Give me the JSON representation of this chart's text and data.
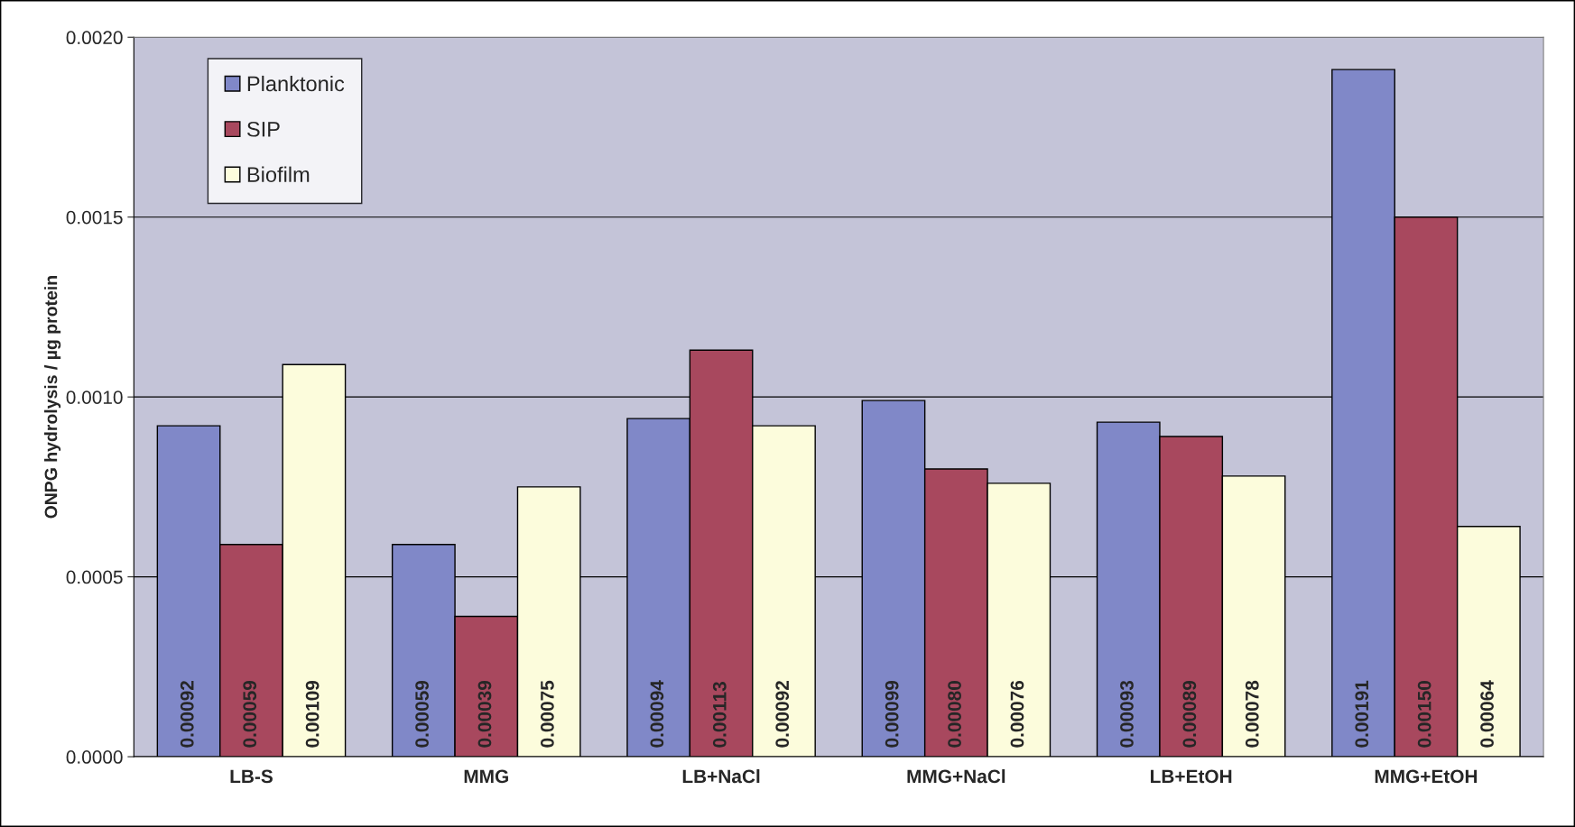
{
  "chart_data": {
    "type": "bar",
    "ylabel": "ONPG hydrolysis / µg protein",
    "categories": [
      "LB-S",
      "MMG",
      "LB+NaCl",
      "MMG+NaCl",
      "LB+EtOH",
      "MMG+EtOH"
    ],
    "series": [
      {
        "name": "Planktonic",
        "color": "#8088c8",
        "values": [
          0.00092,
          0.00059,
          0.00094,
          0.00099,
          0.00093,
          0.00191
        ],
        "value_labels": [
          "0.00092",
          "0.00059",
          "0.00094",
          "0.00099",
          "0.00093",
          "0.00191"
        ]
      },
      {
        "name": "SIP",
        "color": "#a8485e",
        "values": [
          0.00059,
          0.00039,
          0.00113,
          0.0008,
          0.00089,
          0.0015
        ],
        "value_labels": [
          "0.00059",
          "0.00039",
          "0.00113",
          "0.00080",
          "0.00089",
          "0.00150"
        ]
      },
      {
        "name": "Biofilm",
        "color": "#fcfcdc",
        "values": [
          0.00109,
          0.00075,
          0.00092,
          0.00076,
          0.00078,
          0.00064
        ],
        "value_labels": [
          "0.00109",
          "0.00075",
          "0.00092",
          "0.00076",
          "0.00078",
          "0.00064"
        ]
      }
    ],
    "ylim": [
      0,
      0.002
    ],
    "yticks": [
      {
        "value": 0,
        "label": "0.0000"
      },
      {
        "value": 0.0005,
        "label": "0.0005"
      },
      {
        "value": 0.001,
        "label": "0.0010"
      },
      {
        "value": 0.0015,
        "label": "0.0015"
      },
      {
        "value": 0.002,
        "label": "0.0020"
      }
    ],
    "grid": "y",
    "legend": "top left"
  }
}
